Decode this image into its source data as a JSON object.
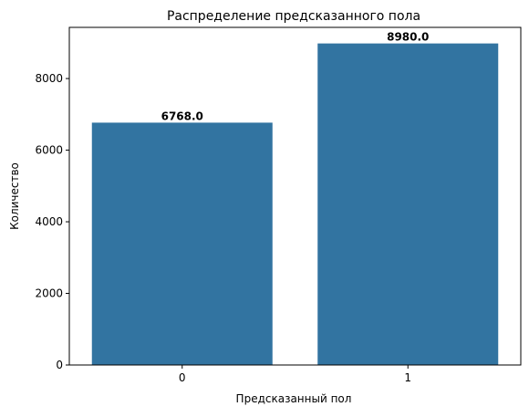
{
  "chart_data": {
    "type": "bar",
    "title": "Распределение предсказанного пола",
    "xlabel": "Предсказанный пол",
    "ylabel": "Количество",
    "categories": [
      "0",
      "1"
    ],
    "values": [
      6768.0,
      8980.0
    ],
    "data_labels": [
      "6768.0",
      "8980.0"
    ],
    "yticks": [
      "0",
      "2000",
      "4000",
      "6000",
      "8000"
    ],
    "ylim": [
      0,
      9429
    ],
    "grid": false,
    "legend": "none",
    "bar_color": "#3274a1"
  }
}
